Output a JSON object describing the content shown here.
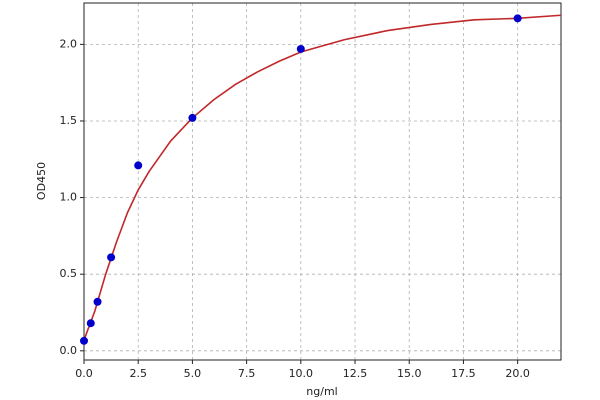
{
  "chart_data": {
    "type": "scatter",
    "xlabel": "ng/ml",
    "ylabel": "OD450",
    "xlim": [
      0,
      22
    ],
    "ylim": [
      -0.06,
      2.27
    ],
    "xticks": [
      {
        "value": 0,
        "label": "0.0"
      },
      {
        "value": 2.5,
        "label": "2.5"
      },
      {
        "value": 5,
        "label": "5.0"
      },
      {
        "value": 7.5,
        "label": "7.5"
      },
      {
        "value": 10,
        "label": "10.0"
      },
      {
        "value": 12.5,
        "label": "12.5"
      },
      {
        "value": 15,
        "label": "15.0"
      },
      {
        "value": 17.5,
        "label": "17.5"
      },
      {
        "value": 20,
        "label": "20.0"
      }
    ],
    "yticks": [
      {
        "value": 0,
        "label": "0.0"
      },
      {
        "value": 0.5,
        "label": "0.5"
      },
      {
        "value": 1,
        "label": "1.0"
      },
      {
        "value": 1.5,
        "label": "1.5"
      },
      {
        "value": 2,
        "label": "2.0"
      }
    ],
    "grid": true,
    "series": [
      {
        "type": "scatter",
        "color": "#0000cc",
        "x": [
          0,
          0.3125,
          0.625,
          1.25,
          2.5,
          5,
          10,
          20
        ],
        "values": [
          0.065,
          0.18,
          0.32,
          0.61,
          1.21,
          1.52,
          1.97,
          2.17
        ]
      },
      {
        "type": "line",
        "color": "#c0282a",
        "x": [
          0,
          0.5,
          1,
          1.5,
          2,
          2.5,
          3,
          4,
          5,
          6,
          7,
          8,
          9,
          10,
          12,
          14,
          16,
          18,
          20,
          22
        ],
        "values": [
          0.07,
          0.26,
          0.5,
          0.71,
          0.9,
          1.05,
          1.17,
          1.37,
          1.52,
          1.64,
          1.74,
          1.82,
          1.89,
          1.95,
          2.03,
          2.09,
          2.13,
          2.16,
          2.17,
          2.19
        ]
      }
    ]
  }
}
